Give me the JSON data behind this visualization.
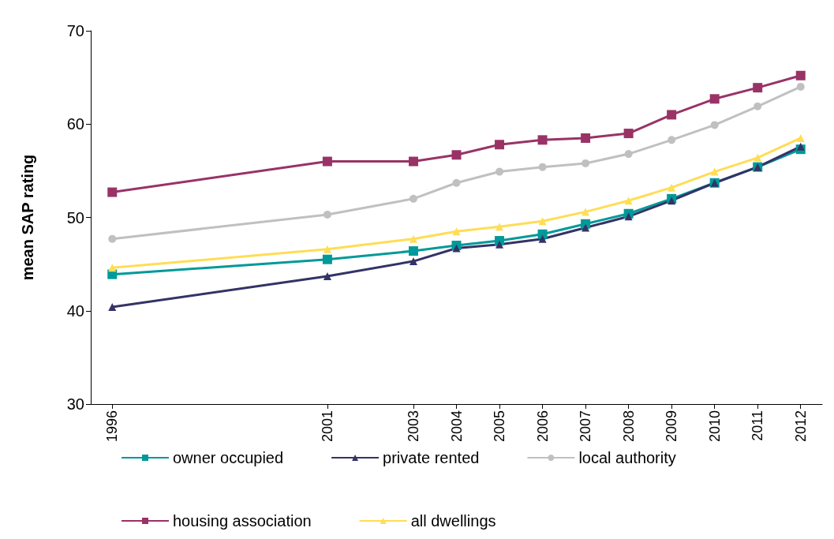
{
  "chart_data": {
    "type": "line",
    "ylabel": "mean SAP rating",
    "x": [
      1996,
      2001,
      2003,
      2004,
      2005,
      2006,
      2007,
      2008,
      2009,
      2010,
      2011,
      2012
    ],
    "xlim": [
      1995.5,
      2012.5
    ],
    "xticks": [
      1996,
      2001,
      2003,
      2004,
      2005,
      2006,
      2007,
      2008,
      2009,
      2010,
      2011,
      2012
    ],
    "ylim": [
      30,
      70
    ],
    "yticks": [
      30,
      40,
      50,
      60,
      70
    ],
    "grid": false,
    "legend": "bottom",
    "series": [
      {
        "name": "owner occupied",
        "color": "#009999",
        "marker": "square",
        "values": [
          43.9,
          45.5,
          46.4,
          47.0,
          47.5,
          48.2,
          49.3,
          50.4,
          52.0,
          53.7,
          55.4,
          57.3
        ]
      },
      {
        "name": "private rented",
        "color": "#333366",
        "marker": "triangle",
        "values": [
          40.4,
          43.7,
          45.3,
          46.7,
          47.1,
          47.7,
          48.9,
          50.1,
          51.8,
          53.7,
          55.4,
          57.6
        ]
      },
      {
        "name": "local authority",
        "color": "#c0c0c0",
        "marker": "circle",
        "values": [
          47.7,
          50.3,
          52.0,
          53.7,
          54.9,
          55.4,
          55.8,
          56.8,
          58.3,
          59.9,
          61.9,
          64.0
        ]
      },
      {
        "name": "housing association",
        "color": "#993366",
        "marker": "square",
        "values": [
          52.7,
          56.0,
          56.0,
          56.7,
          57.8,
          58.3,
          58.5,
          59.0,
          61.0,
          62.7,
          63.9,
          65.2
        ]
      },
      {
        "name": "all dwellings",
        "color": "#ffdd55",
        "marker": "triangle",
        "values": [
          44.6,
          46.6,
          47.7,
          48.5,
          49.0,
          49.6,
          50.6,
          51.8,
          53.2,
          54.9,
          56.4,
          58.5
        ]
      }
    ]
  }
}
